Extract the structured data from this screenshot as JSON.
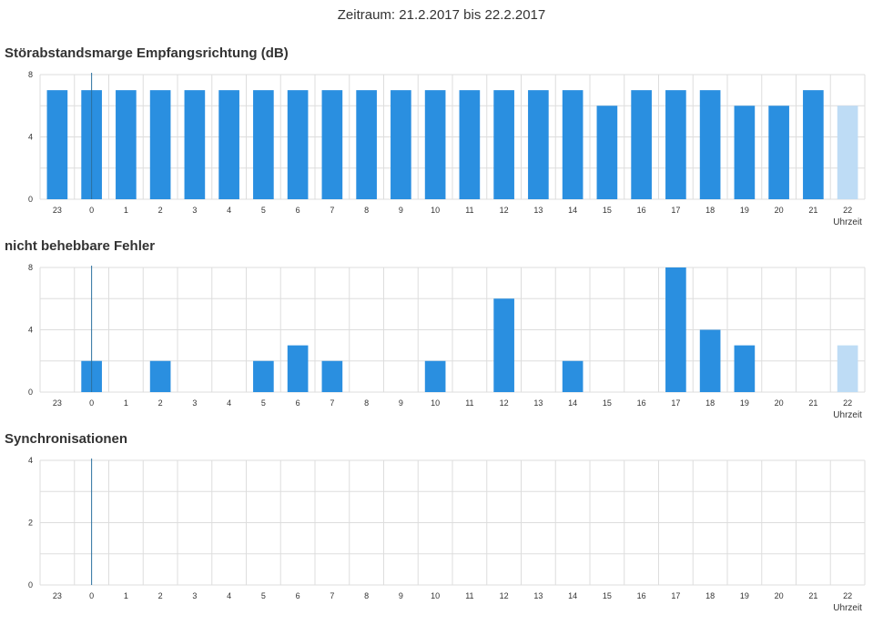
{
  "header": {
    "period": "Zeitraum: 21.2.2017 bis 22.2.2017"
  },
  "colors": {
    "bar": "#2a8fe0",
    "bar_current": "#bedcf5",
    "grid": "#dddddd",
    "marker": "#2a6f9e"
  },
  "chart_data": [
    {
      "type": "bar",
      "title": "Störabstandsmarge Empfangsrichtung (dB)",
      "xlabel": "Uhrzeit",
      "ylabel": "",
      "categories": [
        "23",
        "0",
        "1",
        "2",
        "3",
        "4",
        "5",
        "6",
        "7",
        "8",
        "9",
        "10",
        "11",
        "12",
        "13",
        "14",
        "15",
        "16",
        "17",
        "18",
        "19",
        "20",
        "21",
        "22"
      ],
      "values": [
        7,
        7,
        7,
        7,
        7,
        7,
        7,
        7,
        7,
        7,
        7,
        7,
        7,
        7,
        7,
        7,
        6,
        7,
        7,
        7,
        6,
        6,
        7,
        6
      ],
      "yticks": [
        "0",
        "4",
        "8"
      ],
      "ylim": [
        0,
        8
      ],
      "highlight_last": true,
      "grid": true,
      "marker_category": "0"
    },
    {
      "type": "bar",
      "title": "nicht behebbare Fehler",
      "xlabel": "Uhrzeit",
      "ylabel": "",
      "categories": [
        "23",
        "0",
        "1",
        "2",
        "3",
        "4",
        "5",
        "6",
        "7",
        "8",
        "9",
        "10",
        "11",
        "12",
        "13",
        "14",
        "15",
        "16",
        "17",
        "18",
        "19",
        "20",
        "21",
        "22"
      ],
      "values": [
        0,
        2,
        0,
        2,
        0,
        0,
        2,
        3,
        2,
        0,
        0,
        2,
        0,
        6,
        0,
        2,
        0,
        0,
        8,
        4,
        3,
        0,
        0,
        3
      ],
      "yticks": [
        "0",
        "4",
        "8"
      ],
      "ylim": [
        0,
        8
      ],
      "highlight_last": true,
      "grid": true,
      "marker_category": "0"
    },
    {
      "type": "bar",
      "title": "Synchronisationen",
      "xlabel": "Uhrzeit",
      "ylabel": "",
      "categories": [
        "23",
        "0",
        "1",
        "2",
        "3",
        "4",
        "5",
        "6",
        "7",
        "8",
        "9",
        "10",
        "11",
        "12",
        "13",
        "14",
        "15",
        "16",
        "17",
        "18",
        "19",
        "20",
        "21",
        "22"
      ],
      "values": [
        0,
        0,
        0,
        0,
        0,
        0,
        0,
        0,
        0,
        0,
        0,
        0,
        0,
        0,
        0,
        0,
        0,
        0,
        0,
        0,
        0,
        0,
        0,
        0
      ],
      "yticks": [
        "0",
        "2",
        "4"
      ],
      "ylim": [
        0,
        4
      ],
      "highlight_last": true,
      "grid": true,
      "marker_category": "0"
    }
  ]
}
